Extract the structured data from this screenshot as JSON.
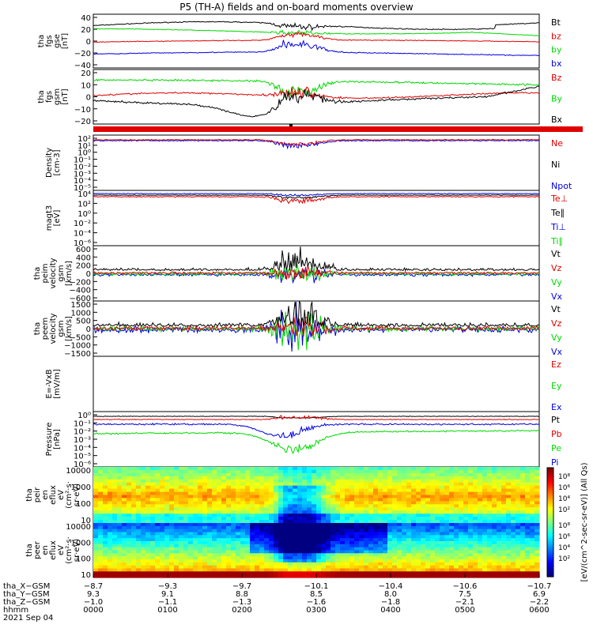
{
  "title": "P5 (TH-A) fields and on-board moments overview",
  "colors": {
    "black": "#000000",
    "red": "#e00000",
    "green": "#00d800",
    "blue": "#0000e0"
  },
  "chart_data": [
    {
      "type": "line",
      "panel": "fgs-gse",
      "ylabel": [
        "tha",
        "fgs",
        "gse",
        "[nT]"
      ],
      "yticks": [
        "40",
        "20",
        "0",
        "−20",
        "−40"
      ],
      "ylim": [
        -40,
        45
      ],
      "legend": [
        {
          "name": "Bt",
          "color": "black"
        },
        {
          "name": "bz",
          "color": "red"
        },
        {
          "name": "by",
          "color": "green"
        },
        {
          "name": "bx",
          "color": "blue"
        }
      ]
    },
    {
      "type": "line",
      "panel": "fgs-gsm",
      "ylabel": [
        "tha",
        "fgs",
        "gsm",
        "[nT]"
      ],
      "yticks": [
        "20",
        "10",
        "0",
        "−10",
        "−20"
      ],
      "ylim": [
        -22,
        20
      ],
      "legend": [
        {
          "name": "Bz",
          "color": "red"
        },
        {
          "name": "By",
          "color": "green"
        },
        {
          "name": "Bx",
          "color": "black"
        }
      ]
    },
    {
      "type": "line",
      "panel": "density",
      "ylabel": [
        "Density",
        "[cm-3]"
      ],
      "yticks": [
        "10²",
        "10¹",
        "10⁰",
        "10⁻¹",
        "10⁻²",
        "10⁻³",
        "10⁻⁴",
        "10⁻⁵"
      ],
      "scale": "log",
      "legend": [
        {
          "name": "Ne",
          "color": "red"
        },
        {
          "name": "Ni",
          "color": "black"
        },
        {
          "name": "Npot",
          "color": "blue"
        }
      ]
    },
    {
      "type": "line",
      "panel": "temperature",
      "ylabel": [
        "magt3",
        "[eV]"
      ],
      "yticks": [
        "10⁴",
        "10²",
        "10⁰",
        "10⁻²",
        "10⁻⁴",
        "10⁻⁶"
      ],
      "scale": "log",
      "legend": [
        {
          "name": "Te⊥",
          "color": "red"
        },
        {
          "name": "Te∥",
          "color": "black"
        },
        {
          "name": "Ti⊥",
          "color": "blue"
        },
        {
          "name": "Ti∥",
          "color": "green"
        }
      ]
    },
    {
      "type": "line",
      "panel": "peim-velocity",
      "ylabel": [
        "tha",
        "peim",
        "velocity",
        "gsm",
        "[km/s]"
      ],
      "yticks": [
        "600",
        "400",
        "200",
        "0",
        "−200",
        "−400",
        "−600"
      ],
      "ylim": [
        -600,
        600
      ],
      "legend": [
        {
          "name": "Vt",
          "color": "black"
        },
        {
          "name": "Vz",
          "color": "red"
        },
        {
          "name": "Vy",
          "color": "green"
        },
        {
          "name": "Vx",
          "color": "blue"
        }
      ]
    },
    {
      "type": "line",
      "panel": "peem-velocity",
      "ylabel": [
        "tha",
        "peem",
        "velocity",
        "gsm",
        "[km/s]"
      ],
      "yticks": [
        "1500",
        "1000",
        "500",
        "0",
        "−500",
        "−1000",
        "−1500"
      ],
      "ylim": [
        -1500,
        1500
      ],
      "legend": [
        {
          "name": "Vt",
          "color": "black"
        },
        {
          "name": "Vz",
          "color": "red"
        },
        {
          "name": "Vy",
          "color": "green"
        },
        {
          "name": "Vx",
          "color": "blue"
        }
      ]
    },
    {
      "type": "line",
      "panel": "efield",
      "ylabel": [
        "E=-VxB",
        "[mV/m]"
      ],
      "yticks": [],
      "legend": [
        {
          "name": "Ez",
          "color": "red"
        },
        {
          "name": "Ey",
          "color": "green"
        },
        {
          "name": "Ex",
          "color": "blue"
        }
      ]
    },
    {
      "type": "line",
      "panel": "pressure",
      "ylabel": [
        "Pressure",
        "[nPa]"
      ],
      "yticks": [
        "10⁰",
        "10⁻¹",
        "10⁻²",
        "10⁻³",
        "10⁻⁴",
        "10⁻⁵",
        "10⁻⁶"
      ],
      "scale": "log",
      "legend": [
        {
          "name": "Pt",
          "color": "black"
        },
        {
          "name": "Pb",
          "color": "red"
        },
        {
          "name": "Pe",
          "color": "green"
        },
        {
          "name": "Pi",
          "color": "blue"
        }
      ]
    },
    {
      "type": "heatmap",
      "panel": "peir-flux",
      "ylabel": [
        "tha",
        "peir",
        "en",
        "eflux",
        "eV",
        "(cm²·s·",
        "sr·eV)"
      ],
      "yticks": [
        "10000",
        "1000",
        "100",
        "10"
      ],
      "scale": "log"
    },
    {
      "type": "heatmap",
      "panel": "peer-flux",
      "ylabel": [
        "tha",
        "peer",
        "en",
        "eflux",
        "eV",
        "(cm²·s·",
        "sr·eV)"
      ],
      "yticks": [
        "10000",
        "1000",
        "100",
        "10"
      ],
      "scale": "log"
    }
  ],
  "colorbar": {
    "label": "[eV/(cm^2-sec-sr-eV)] (All Qs)",
    "upper_ticks": [
      "10⁸",
      "10⁶",
      "10⁴",
      "10²"
    ],
    "lower_ticks": [
      "10⁸",
      "10⁶",
      "10⁴",
      "10²"
    ]
  },
  "x_axis": {
    "rows": [
      {
        "label": "tha_X−GSM",
        "values": [
          "−8.7",
          "−9.3",
          "−9.7",
          "−10.1",
          "−10.4",
          "−10.6",
          "−10.7"
        ]
      },
      {
        "label": "tha_Y−GSM",
        "values": [
          "9.3",
          "9.1",
          "8.8",
          "8.5",
          "8.0",
          "7.5",
          "6.9"
        ]
      },
      {
        "label": "tha_Z−GSM",
        "values": [
          "−1.0",
          "−1.1",
          "−1.3",
          "−1.6",
          "−1.8",
          "−2.1",
          "−2.2"
        ]
      },
      {
        "label": "hhmm",
        "values": [
          "0000",
          "0100",
          "0200",
          "0300",
          "0400",
          "0500",
          "0600"
        ]
      }
    ],
    "date": "2021 Sep 04"
  }
}
